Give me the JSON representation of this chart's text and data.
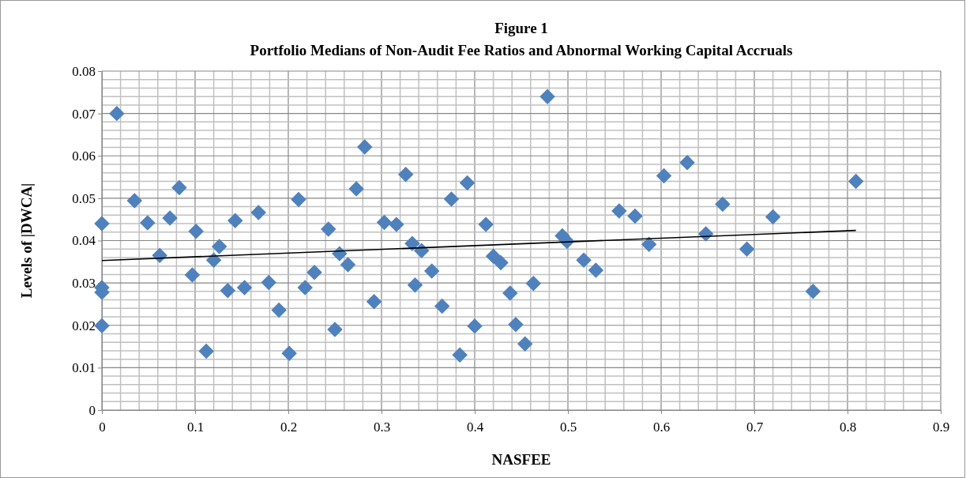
{
  "chart_data": {
    "type": "scatter",
    "title": "Figure 1",
    "subtitle": "Portfolio Medians of Non-Audit Fee Ratios and Abnormal Working Capital Accruals",
    "xlabel": "NASFEE",
    "ylabel": "Levels of |DWCA|",
    "xlim": [
      0,
      0.9
    ],
    "xticks": [
      0,
      0.1,
      0.2,
      0.3,
      0.4,
      0.5,
      0.6,
      0.7,
      0.8,
      0.9
    ],
    "ylim": [
      0,
      0.08
    ],
    "yticks": [
      0,
      0.01,
      0.02,
      0.03,
      0.04,
      0.05,
      0.06,
      0.07,
      0.08
    ],
    "grid": true,
    "series": [
      {
        "color": "#4f81bd",
        "marker": "diamond",
        "x": [
          0,
          0,
          0,
          0,
          0.016,
          0.035,
          0.049,
          0.062,
          0.073,
          0.083,
          0.097,
          0.101,
          0.112,
          0.12,
          0.126,
          0.135,
          0.143,
          0.153,
          0.168,
          0.179,
          0.19,
          0.201,
          0.211,
          0.218,
          0.228,
          0.243,
          0.25,
          0.255,
          0.264,
          0.273,
          0.282,
          0.292,
          0.303,
          0.316,
          0.326,
          0.333,
          0.336,
          0.343,
          0.354,
          0.365,
          0.375,
          0.384,
          0.392,
          0.4,
          0.412,
          0.42,
          0.428,
          0.438,
          0.444,
          0.454,
          0.463,
          0.478,
          0.494,
          0.499,
          0.517,
          0.53,
          0.555,
          0.572,
          0.587,
          0.603,
          0.628,
          0.648,
          0.666,
          0.692,
          0.72,
          0.763,
          0.809
        ],
        "values": [
          0.044,
          0.0289,
          0.0278,
          0.0199,
          0.07,
          0.0494,
          0.0442,
          0.0365,
          0.0453,
          0.0525,
          0.0319,
          0.0422,
          0.0139,
          0.0354,
          0.0386,
          0.0282,
          0.0447,
          0.0289,
          0.0466,
          0.0301,
          0.0236,
          0.0134,
          0.0497,
          0.0289,
          0.0325,
          0.0427,
          0.019,
          0.0369,
          0.0343,
          0.0522,
          0.0621,
          0.0256,
          0.0443,
          0.0438,
          0.0556,
          0.0393,
          0.0295,
          0.0376,
          0.0328,
          0.0245,
          0.0498,
          0.013,
          0.0536,
          0.0198,
          0.0438,
          0.0363,
          0.0348,
          0.0276,
          0.0202,
          0.0156,
          0.0299,
          0.074,
          0.0411,
          0.0398,
          0.0354,
          0.033,
          0.047,
          0.0458,
          0.0391,
          0.0553,
          0.0584,
          0.0416,
          0.0486,
          0.038,
          0.0456,
          0.028,
          0.054
        ]
      },
      {
        "type": "line",
        "color": "#000000",
        "marker": "none",
        "line_style": "solid",
        "x": [
          0,
          0.809
        ],
        "values": [
          0.0353,
          0.0424
        ]
      }
    ]
  }
}
